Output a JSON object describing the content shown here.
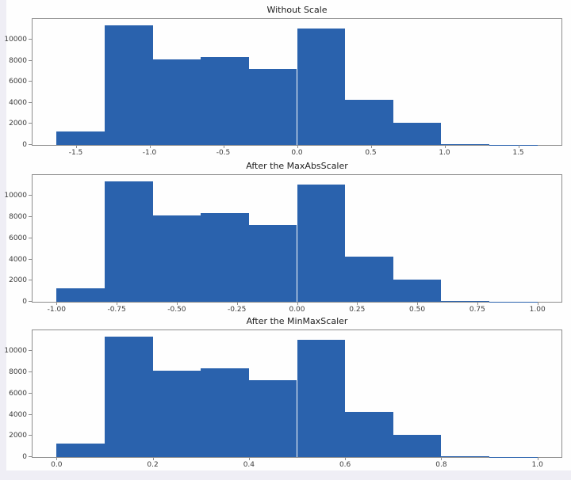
{
  "page": {
    "background_color": "#efeef5",
    "figure_background_color": "#fefefe",
    "spine_color": "#8c8c8c",
    "accent_color": "#2a62ad"
  },
  "chart_data": [
    {
      "type": "bar",
      "subtype": "histogram",
      "title": "Without Scale",
      "bar_color": "#2a62ad",
      "grid": false,
      "legend": null,
      "xlabel": "",
      "ylabel": "",
      "xlim": [
        -1.793,
        1.793
      ],
      "ylim": [
        0,
        11970
      ],
      "bin_edges": [
        -1.63,
        -1.304,
        -0.978,
        -0.652,
        -0.326,
        0.0,
        0.326,
        0.652,
        0.978,
        1.304,
        1.63
      ],
      "counts": [
        1300,
        11400,
        8150,
        8350,
        7250,
        11050,
        4300,
        2100,
        110,
        20
      ],
      "x_tick_values": [
        -1.5,
        -1.0,
        -0.5,
        0.0,
        0.5,
        1.0,
        1.5
      ],
      "x_tick_labels": [
        "-1.5",
        "-1.0",
        "-0.5",
        "0.0",
        "0.5",
        "1.0",
        "1.5"
      ],
      "y_tick_values": [
        0,
        2000,
        4000,
        6000,
        8000,
        10000
      ],
      "y_tick_labels": [
        "0",
        "2000",
        "4000",
        "6000",
        "8000",
        "10000"
      ]
    },
    {
      "type": "bar",
      "subtype": "histogram",
      "title": "After the MaxAbsScaler",
      "bar_color": "#2a62ad",
      "grid": false,
      "legend": null,
      "xlabel": "",
      "ylabel": "",
      "xlim": [
        -1.1,
        1.1
      ],
      "ylim": [
        0,
        11970
      ],
      "bin_edges": [
        -1.0,
        -0.8,
        -0.6,
        -0.4,
        -0.2,
        0.0,
        0.2,
        0.4,
        0.6,
        0.8,
        1.0
      ],
      "counts": [
        1300,
        11400,
        8150,
        8350,
        7250,
        11050,
        4300,
        2100,
        110,
        20
      ],
      "x_tick_values": [
        -1.0,
        -0.75,
        -0.5,
        -0.25,
        0.0,
        0.25,
        0.5,
        0.75,
        1.0
      ],
      "x_tick_labels": [
        "-1.00",
        "-0.75",
        "-0.50",
        "-0.25",
        "0.00",
        "0.25",
        "0.50",
        "0.75",
        "1.00"
      ],
      "y_tick_values": [
        0,
        2000,
        4000,
        6000,
        8000,
        10000
      ],
      "y_tick_labels": [
        "0",
        "2000",
        "4000",
        "6000",
        "8000",
        "10000"
      ]
    },
    {
      "type": "bar",
      "subtype": "histogram",
      "title": "After the MinMaxScaler",
      "bar_color": "#2a62ad",
      "grid": false,
      "legend": null,
      "xlabel": "",
      "ylabel": "",
      "xlim": [
        -0.05,
        1.05
      ],
      "ylim": [
        0,
        11970
      ],
      "bin_edges": [
        0.0,
        0.1,
        0.2,
        0.3,
        0.4,
        0.5,
        0.6,
        0.7,
        0.8,
        0.9,
        1.0
      ],
      "counts": [
        1300,
        11400,
        8150,
        8350,
        7250,
        11050,
        4300,
        2100,
        110,
        20
      ],
      "x_tick_values": [
        0.0,
        0.2,
        0.4,
        0.6,
        0.8,
        1.0
      ],
      "x_tick_labels": [
        "0.0",
        "0.2",
        "0.4",
        "0.6",
        "0.8",
        "1.0"
      ],
      "y_tick_values": [
        0,
        2000,
        4000,
        6000,
        8000,
        10000
      ],
      "y_tick_labels": [
        "0",
        "2000",
        "4000",
        "6000",
        "8000",
        "10000"
      ]
    }
  ]
}
